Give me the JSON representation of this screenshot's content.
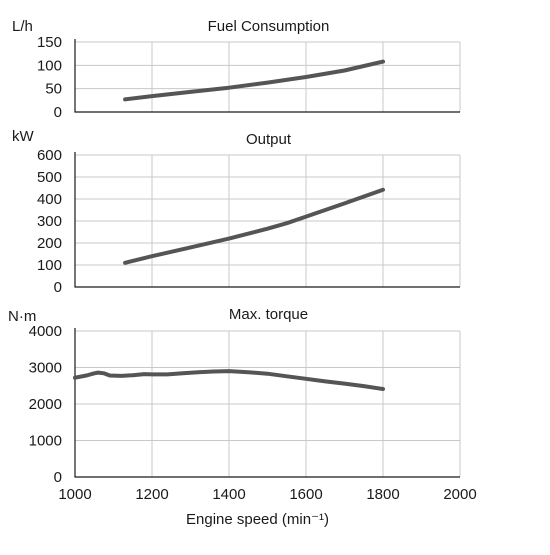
{
  "chart_data": [
    {
      "type": "line",
      "title": "Fuel Consumption",
      "ylabel": "L/h",
      "xlim": [
        1000,
        2000
      ],
      "ylim": [
        0,
        150
      ],
      "yticks": [
        "0",
        "50",
        "100",
        "150"
      ],
      "grid": true,
      "series": [
        {
          "x": [
            1130,
            1200,
            1300,
            1400,
            1500,
            1600,
            1700,
            1800
          ],
          "values": [
            27,
            34,
            43,
            52,
            63,
            75,
            89,
            108
          ],
          "color": "#555555"
        }
      ]
    },
    {
      "type": "line",
      "title": "Output",
      "ylabel": "kW",
      "xlim": [
        1000,
        2000
      ],
      "ylim": [
        0,
        600
      ],
      "yticks": [
        "0",
        "100",
        "200",
        "300",
        "400",
        "500",
        "600"
      ],
      "grid": true,
      "series": [
        {
          "x": [
            1130,
            1200,
            1300,
            1400,
            1500,
            1550,
            1600,
            1700,
            1800
          ],
          "values": [
            110,
            140,
            180,
            220,
            265,
            290,
            320,
            380,
            442
          ],
          "color": "#555555"
        }
      ]
    },
    {
      "type": "line",
      "title": "Max. torque",
      "ylabel": "N·m",
      "xlabel": "Engine speed (min⁻¹)",
      "xlim": [
        1000,
        2000
      ],
      "ylim": [
        0,
        4000
      ],
      "xticks": [
        "1000",
        "1200",
        "1400",
        "1600",
        "1800",
        "2000"
      ],
      "yticks": [
        "0",
        "1000",
        "2000",
        "3000",
        "4000"
      ],
      "grid": true,
      "series": [
        {
          "x": [
            1000,
            1030,
            1050,
            1060,
            1075,
            1090,
            1120,
            1150,
            1180,
            1200,
            1240,
            1280,
            1320,
            1360,
            1400,
            1450,
            1500,
            1550,
            1600,
            1650,
            1700,
            1750,
            1800
          ],
          "values": [
            2720,
            2780,
            2840,
            2860,
            2840,
            2780,
            2770,
            2790,
            2820,
            2810,
            2810,
            2840,
            2870,
            2890,
            2900,
            2870,
            2830,
            2760,
            2690,
            2620,
            2560,
            2490,
            2410
          ],
          "color": "#555555"
        }
      ]
    }
  ]
}
